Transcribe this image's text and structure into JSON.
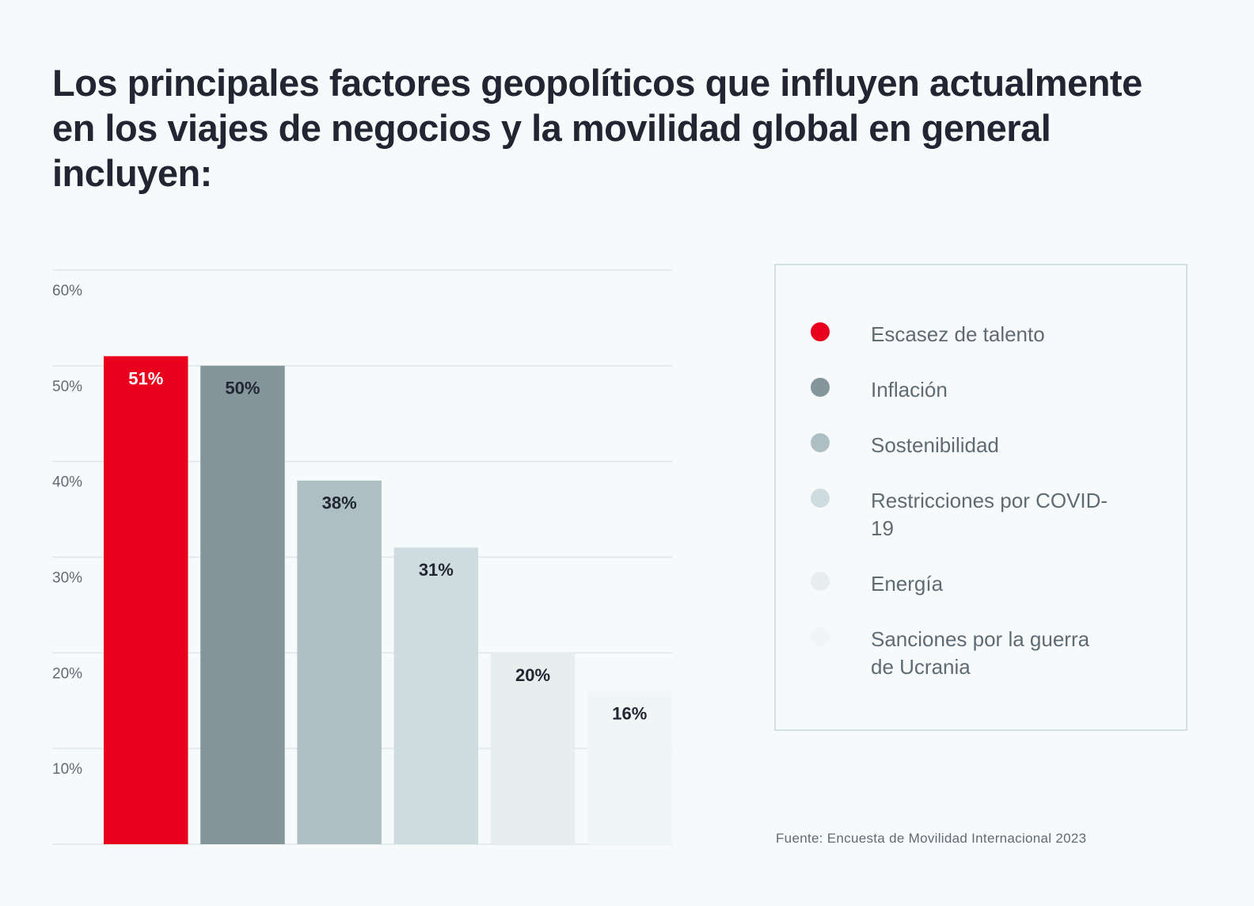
{
  "chart_data": {
    "type": "bar",
    "title": "Los principales factores geopolíticos que influyen actualmente en los viajes de negocios y la movilidad global en general incluyen:",
    "categories": [
      "Escasez de talento",
      "Inflación",
      "Sostenibilidad",
      "Restricciones por COVID-19",
      "Energía",
      "Sanciones por la guerra de Ucrania"
    ],
    "values": [
      51,
      50,
      38,
      31,
      20,
      16
    ],
    "value_labels": [
      "51%",
      "50%",
      "38%",
      "31%",
      "20%",
      "16%"
    ],
    "colors": [
      "#e8001c",
      "#84959b",
      "#adbfc3",
      "#cfdcdf",
      "#e6eeee",
      "#f0f5f5"
    ],
    "ylim": [
      0,
      60
    ],
    "yticks": [
      {
        "value": 10,
        "label": "10%"
      },
      {
        "value": 20,
        "label": "20%"
      },
      {
        "value": 30,
        "label": "30%"
      },
      {
        "value": 40,
        "label": "40%"
      },
      {
        "value": 50,
        "label": "50%"
      },
      {
        "value": 60,
        "label": "60%"
      }
    ],
    "grid": true,
    "source": "Fuente: Encuesta de Movilidad Internacional 2023"
  }
}
